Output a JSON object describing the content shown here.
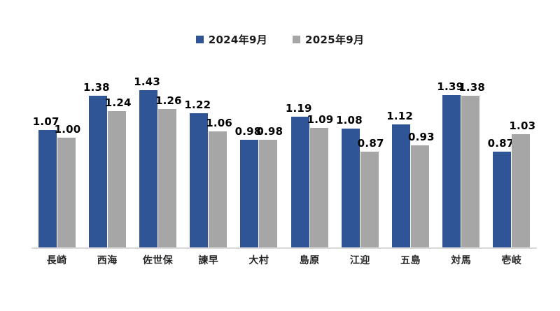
{
  "chart_data": {
    "type": "bar",
    "title": "",
    "categories": [
      "長崎",
      "西海",
      "佐世保",
      "諫早",
      "大村",
      "島原",
      "江迎",
      "五島",
      "対馬",
      "壱岐"
    ],
    "series": [
      {
        "name": "2024年9月",
        "values": [
          1.07,
          1.38,
          1.43,
          1.22,
          0.98,
          1.19,
          1.08,
          1.12,
          1.39,
          0.87
        ]
      },
      {
        "name": "2025年9月",
        "values": [
          1.0,
          1.24,
          1.26,
          1.06,
          0.98,
          1.09,
          0.87,
          0.93,
          1.38,
          1.03
        ]
      }
    ],
    "colors": [
      "#2F5597",
      "#A6A6A6"
    ],
    "axis_line_color": "#D9D9D9",
    "label_text_color": "#000000",
    "ylim": [
      0,
      1.6
    ],
    "grid": false,
    "y_axis_visible": false,
    "legend_position": "top",
    "data_labels": true,
    "label_format": "0.00"
  }
}
